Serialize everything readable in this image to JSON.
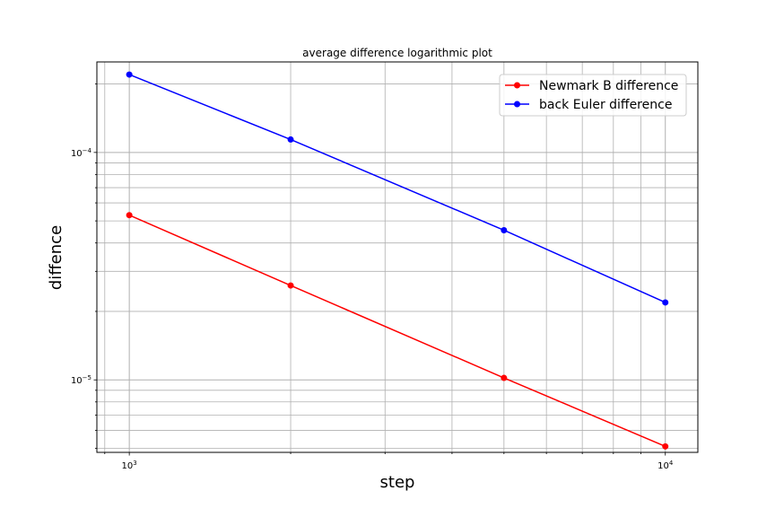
{
  "chart_data": {
    "type": "line",
    "title": "average difference logarithmic plot",
    "xlabel": "step",
    "ylabel": "diffence",
    "xscale": "log",
    "yscale": "log",
    "xlim": [
      870,
      11500
    ],
    "ylim": [
      4.8e-06,
      0.00025
    ],
    "grid": "both major and minor",
    "legend_position": "top-right",
    "x": [
      1000,
      2000,
      5000,
      10000
    ],
    "x_ticks": [
      {
        "value": 1000,
        "base": "10",
        "exp": "3"
      },
      {
        "value": 10000,
        "base": "10",
        "exp": "4"
      }
    ],
    "y_ticks": [
      {
        "value": 1e-05,
        "base": "10",
        "exp": "−5"
      },
      {
        "value": 0.0001,
        "base": "10",
        "exp": "−4"
      }
    ],
    "series": [
      {
        "name": "Newmark B difference",
        "color": "#ff0000",
        "values": [
          5.3e-05,
          2.6e-05,
          1.02e-05,
          5.1e-06
        ]
      },
      {
        "name": "back Euler difference",
        "color": "#0000ff",
        "values": [
          0.00022,
          0.000114,
          4.55e-05,
          2.19e-05
        ]
      }
    ]
  }
}
